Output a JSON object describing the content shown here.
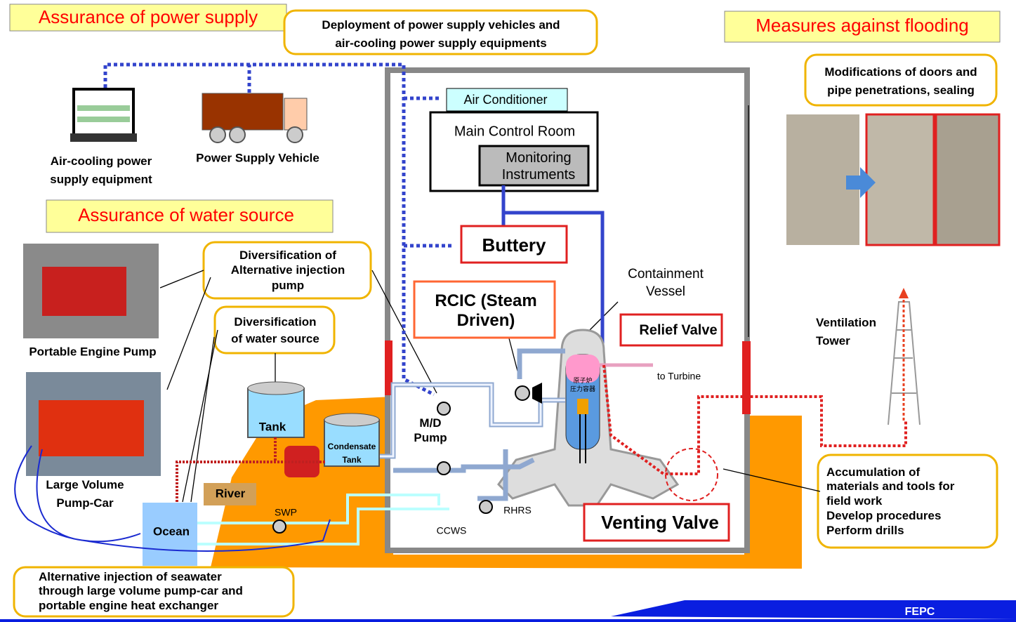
{
  "headers": {
    "power": "Assurance of power supply",
    "flooding": "Measures against flooding",
    "water": "Assurance of water source"
  },
  "callouts": {
    "power_vehicles": [
      "Deployment of power supply vehicles and",
      "air-cooling power supply equipments"
    ],
    "doors": [
      "Modifications of doors and",
      "pipe penetrations, sealing"
    ],
    "pump": [
      "Diversification of",
      "Alternative injection",
      "pump"
    ],
    "water_source": [
      "Diversification",
      "of water source"
    ],
    "seawater": [
      "Alternative injection of seawater",
      "through large volume pump-car and",
      "portable engine heat exchanger"
    ],
    "field_work": [
      "Accumulation of",
      "materials and tools for",
      "field work",
      "Develop procedures",
      "Perform drills"
    ]
  },
  "labels": {
    "air_cooling": [
      "Air-cooling power",
      "supply equipment"
    ],
    "vehicle": "Power Supply Vehicle",
    "engine_pump": "Portable Engine Pump",
    "pump_car": [
      "Large Volume",
      "Pump-Car"
    ],
    "air_conditioner": "Air Conditioner",
    "control_room": "Main Control Room",
    "monitoring": [
      "Monitoring",
      "Instruments"
    ],
    "battery": "Buttery",
    "rcic": [
      "RCIC (Steam",
      "Driven)"
    ],
    "containment": [
      "Containment",
      "Vessel"
    ],
    "relief_valve": "Relief Valve",
    "turbine": "to Turbine",
    "ventilation": [
      "Ventilation",
      "Tower"
    ],
    "md_pump": [
      "M/D",
      "Pump"
    ],
    "tank": "Tank",
    "condensate": [
      "Condensate",
      "Tank"
    ],
    "river": "River",
    "ocean": "Ocean",
    "swp": "SWP",
    "ccws": "CCWS",
    "rhrs": "RHRS",
    "venting_valve": "Venting Valve",
    "rpv": [
      "原子炉",
      "圧力容器"
    ],
    "footer": "FEPC"
  }
}
